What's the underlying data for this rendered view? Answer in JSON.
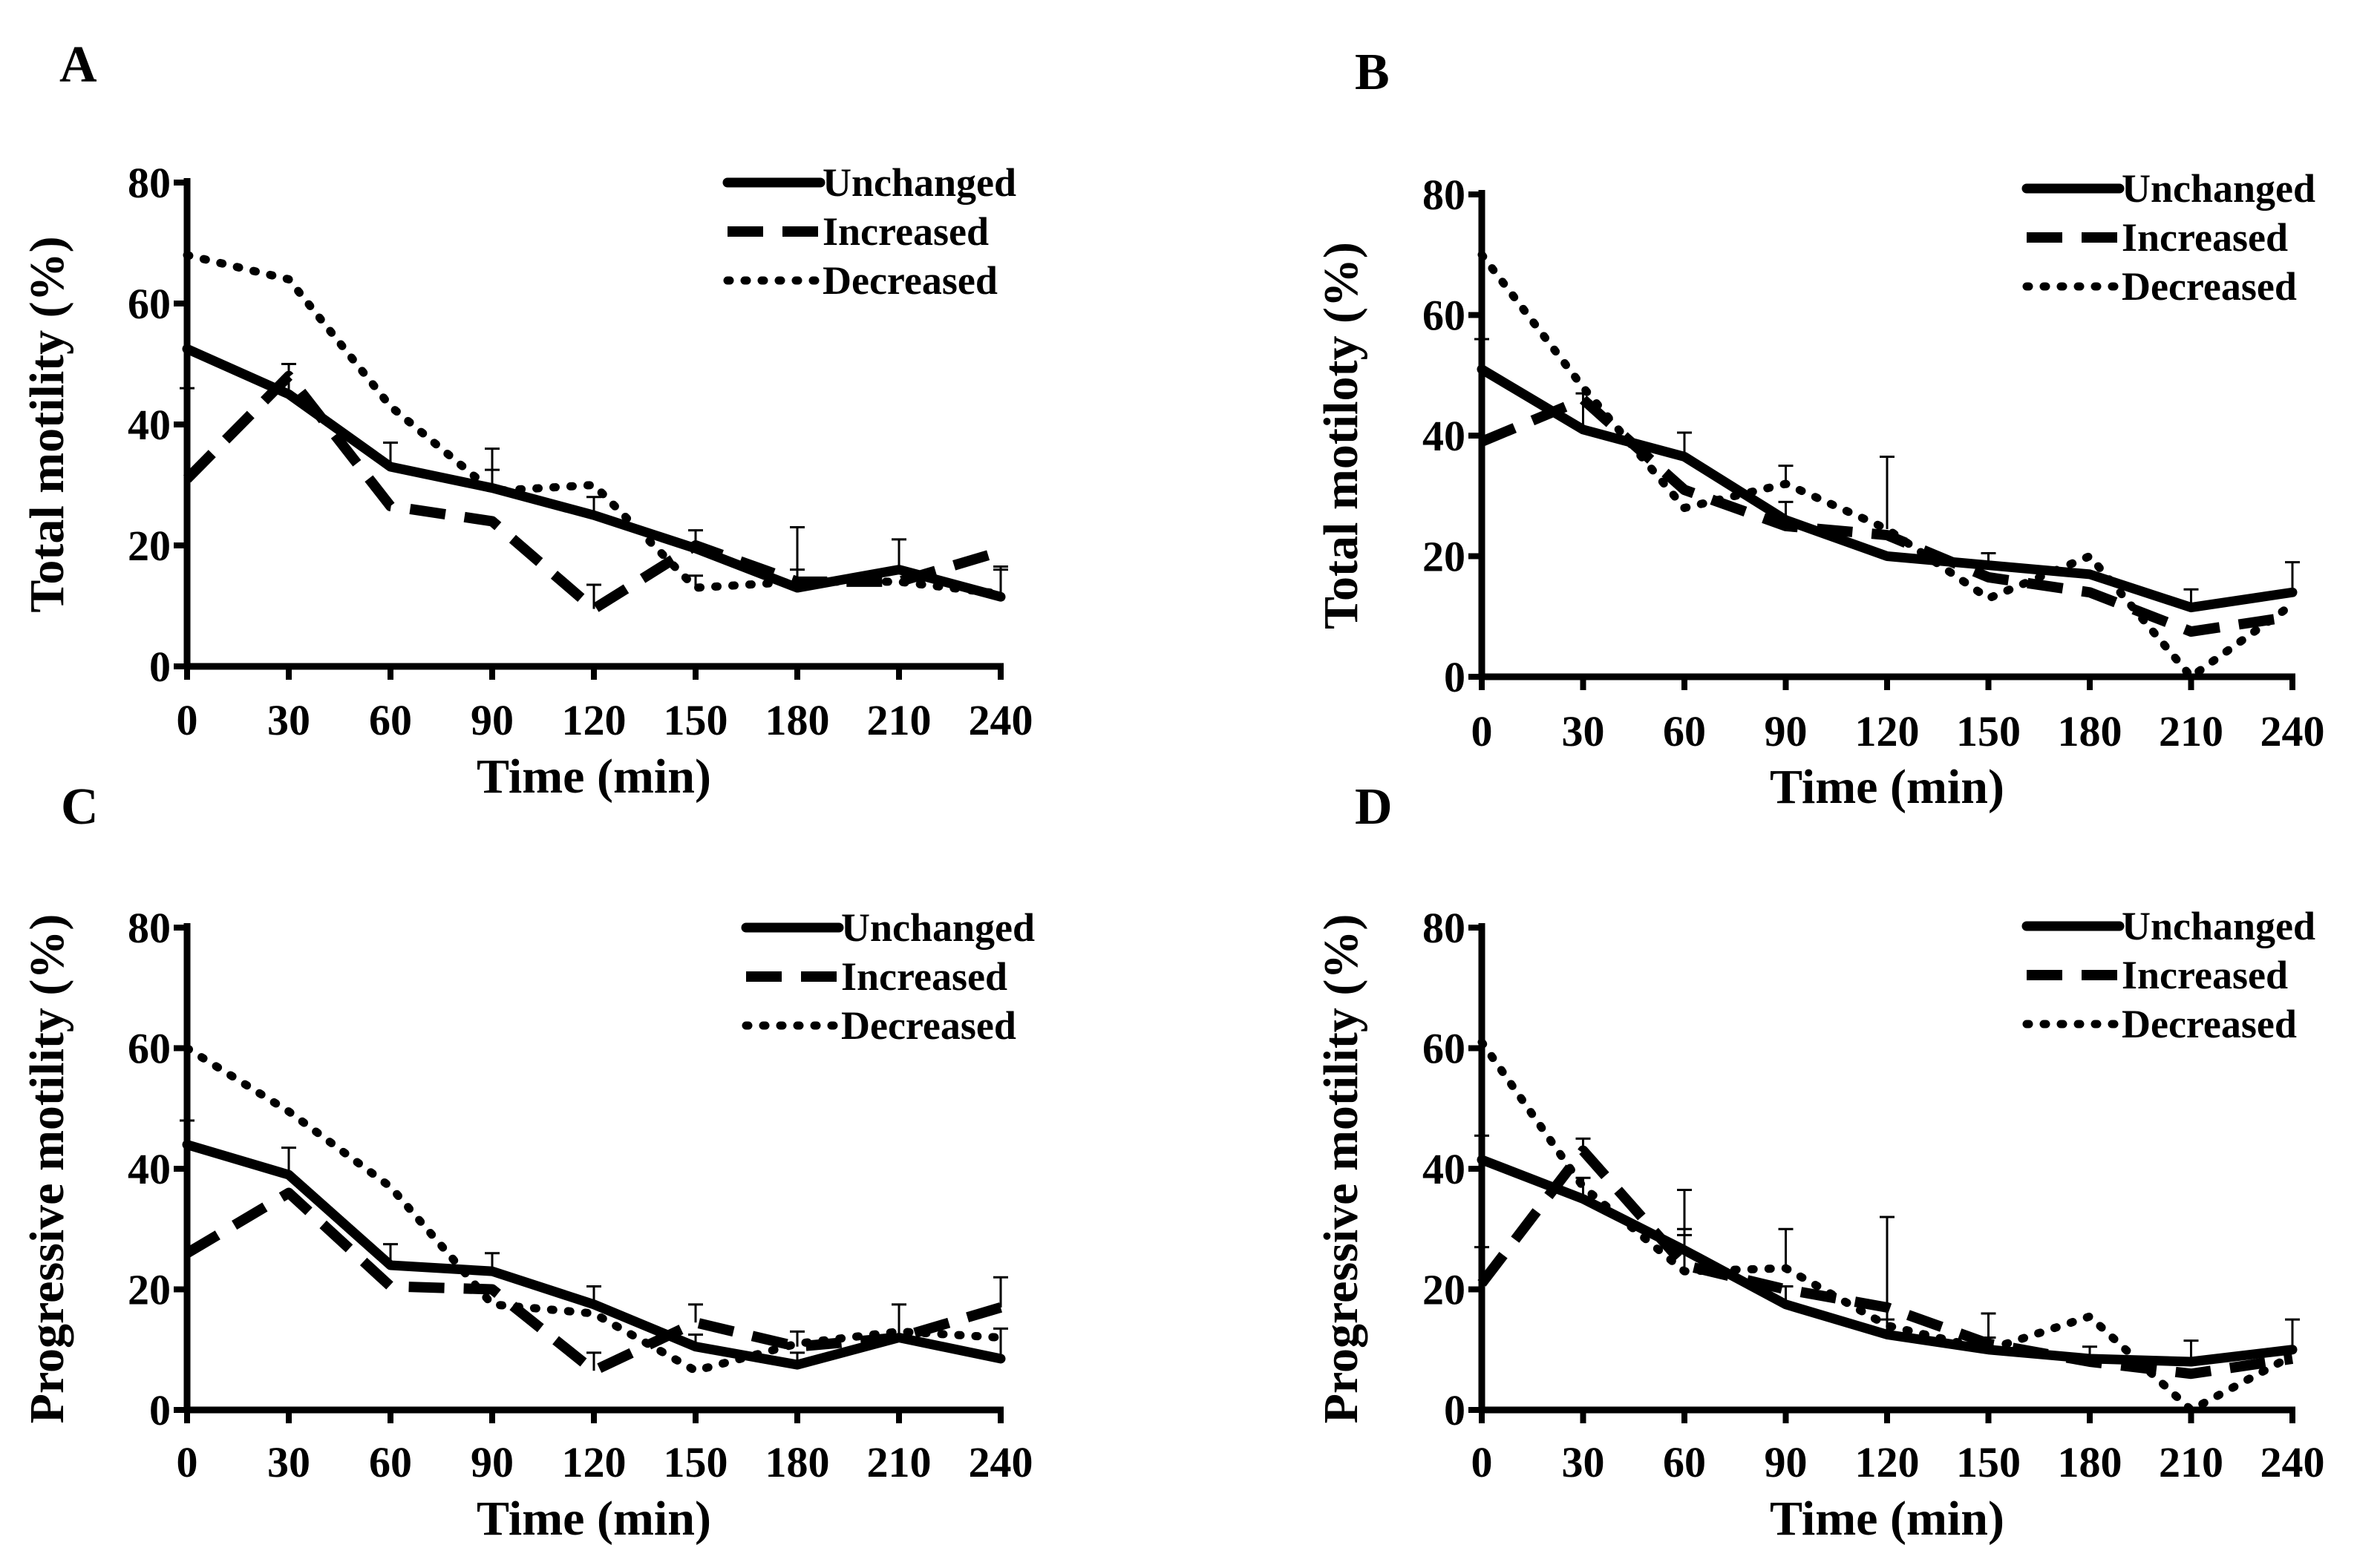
{
  "colors": {
    "line": "#000000",
    "background": "#ffffff"
  },
  "legend_entries": [
    "Unchanged",
    "Increased",
    "Decreased"
  ],
  "chart_data": [
    {
      "panel": "A",
      "type": "line",
      "xlabel": "Time (min)",
      "ylabel": "Total motility (%)",
      "x": [
        0,
        30,
        60,
        90,
        120,
        150,
        180,
        210,
        240
      ],
      "xticks": [
        "0",
        "30",
        "60",
        "90",
        "120",
        "150",
        "180",
        "210",
        "240"
      ],
      "yticks": [
        "0",
        "20",
        "40",
        "60",
        "80"
      ],
      "xlim": [
        0,
        240
      ],
      "ylim": [
        0,
        80
      ],
      "legend": "top-right",
      "series": [
        {
          "name": "Unchanged",
          "style": "solid",
          "values": [
            52.5,
            45,
            33,
            29.5,
            25,
            19.5,
            13,
            16,
            11.5
          ],
          "errors": [
            0,
            5,
            4,
            3,
            3,
            3,
            3,
            5,
            5
          ]
        },
        {
          "name": "Increased",
          "style": "dashed",
          "values": [
            31,
            48,
            26.5,
            24,
            9.5,
            20,
            14,
            14,
            19
          ],
          "errors": [
            15,
            2,
            0,
            0,
            4,
            0,
            9,
            0,
            0
          ]
        },
        {
          "name": "Decreased",
          "style": "dotted",
          "values": [
            68,
            64,
            43,
            29,
            30,
            13,
            14,
            14,
            12
          ],
          "errors": [
            0,
            0,
            0,
            7,
            0,
            2,
            0,
            0,
            4
          ]
        }
      ]
    },
    {
      "panel": "B",
      "type": "line",
      "xlabel": "Time (min)",
      "ylabel": "Total motiloty (%)",
      "x": [
        0,
        30,
        60,
        90,
        120,
        150,
        180,
        210,
        240
      ],
      "xticks": [
        "0",
        "30",
        "60",
        "90",
        "120",
        "150",
        "180",
        "210",
        "240"
      ],
      "yticks": [
        "0",
        "20",
        "40",
        "60",
        "80"
      ],
      "xlim": [
        0,
        240
      ],
      "ylim": [
        0,
        80
      ],
      "legend": "top-right",
      "series": [
        {
          "name": "Unchanged",
          "style": "solid",
          "values": [
            51,
            41,
            36.5,
            26,
            20,
            18.5,
            17,
            11.5,
            14
          ],
          "errors": [
            5,
            6,
            4,
            3,
            0,
            2,
            0,
            3,
            5
          ]
        },
        {
          "name": "Increased",
          "style": "dashed",
          "values": [
            39,
            46,
            31,
            25,
            23.5,
            16.5,
            14,
            7.5,
            10
          ],
          "errors": [
            0,
            0,
            0,
            0,
            0,
            0,
            0,
            0,
            0
          ]
        },
        {
          "name": "Decreased",
          "style": "dotted",
          "values": [
            70,
            48,
            28,
            32,
            24.5,
            13,
            20,
            0,
            12
          ],
          "errors": [
            0,
            0,
            0,
            3,
            12,
            0,
            0,
            0,
            0
          ]
        }
      ]
    },
    {
      "panel": "C",
      "type": "line",
      "xlabel": "Time (min)",
      "ylabel": "Progressive motility (%)",
      "x": [
        0,
        30,
        60,
        90,
        120,
        150,
        180,
        210,
        240
      ],
      "xticks": [
        "0",
        "30",
        "60",
        "90",
        "120",
        "150",
        "180",
        "210",
        "240"
      ],
      "yticks": [
        "0",
        "20",
        "40",
        "60",
        "80"
      ],
      "xlim": [
        0,
        240
      ],
      "ylim": [
        0,
        80
      ],
      "legend": "top-right",
      "series": [
        {
          "name": "Unchanged",
          "style": "solid",
          "values": [
            44,
            39,
            24,
            23,
            17.5,
            10.5,
            7.5,
            12,
            8.5
          ],
          "errors": [
            4,
            4.5,
            3.5,
            3,
            3,
            2,
            2,
            5.5,
            5
          ]
        },
        {
          "name": "Increased",
          "style": "dashed",
          "values": [
            26,
            36,
            20.5,
            20,
            6.5,
            14.5,
            10.5,
            12,
            17
          ],
          "errors": [
            0,
            0,
            0,
            0,
            3,
            3,
            2.5,
            0,
            5
          ]
        },
        {
          "name": "Decreased",
          "style": "dotted",
          "values": [
            60,
            49.5,
            37,
            17.5,
            16,
            6.5,
            11,
            13,
            12
          ],
          "errors": [
            0,
            0,
            0,
            0,
            0,
            0,
            0,
            0,
            0
          ]
        }
      ]
    },
    {
      "panel": "D",
      "type": "line",
      "xlabel": "Time (min)",
      "ylabel": "Progressive motility (%)",
      "x": [
        0,
        30,
        60,
        90,
        120,
        150,
        180,
        210,
        240
      ],
      "xticks": [
        "0",
        "30",
        "60",
        "90",
        "120",
        "150",
        "180",
        "210",
        "240"
      ],
      "yticks": [
        "0",
        "20",
        "40",
        "60",
        "80"
      ],
      "xlim": [
        0,
        240
      ],
      "ylim": [
        0,
        80
      ],
      "legend": "top-right",
      "series": [
        {
          "name": "Unchanged",
          "style": "solid",
          "values": [
            41.5,
            35,
            26.5,
            17.5,
            12.5,
            10,
            8.5,
            8,
            10
          ],
          "errors": [
            4,
            3.5,
            3.5,
            3,
            2.5,
            2,
            2,
            3.5,
            5
          ]
        },
        {
          "name": "Increased",
          "style": "dashed",
          "values": [
            21,
            43,
            24,
            20,
            17,
            11,
            8,
            6,
            8.5
          ],
          "errors": [
            6,
            2,
            5,
            0,
            0,
            5,
            0,
            0,
            0
          ]
        },
        {
          "name": "Decreased",
          "style": "dotted",
          "values": [
            61,
            37,
            23,
            23.5,
            14,
            10,
            15.5,
            0,
            9
          ],
          "errors": [
            0,
            0,
            13.5,
            6.5,
            18,
            0,
            0,
            0,
            0
          ]
        }
      ]
    }
  ]
}
